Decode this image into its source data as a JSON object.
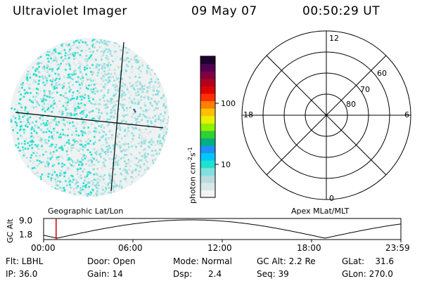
{
  "header": {
    "title": "Ultraviolet Imager",
    "date": "09 May 07",
    "time": "00:50:29 UT"
  },
  "colorbar": {
    "label": "photon cm",
    "label_exp_a": "-2",
    "label_mid": "s",
    "label_exp_b": "-1",
    "ticks": [
      "100",
      "10"
    ],
    "tick_values": [
      100,
      10
    ],
    "colors": [
      "#f0f4f4",
      "#d8e8e8",
      "#b8dcdc",
      "#7fe0e0",
      "#20e0d0",
      "#00c8ff",
      "#2090ff",
      "#00b080",
      "#30d030",
      "#90f000",
      "#e8f000",
      "#ffc000",
      "#ff8000",
      "#ff3000",
      "#e00000",
      "#b00020",
      "#800040",
      "#500050",
      "#200030"
    ],
    "scale": "log"
  },
  "polar_plot": {
    "latitude_labels": [
      "60",
      "70",
      "80"
    ],
    "mlt_labels": {
      "top": "12",
      "bottom": "0",
      "left": "18",
      "right": "6"
    }
  },
  "panel_labels": {
    "left": "Geographic Lat/Lon",
    "right": "Apex MLat/MLT"
  },
  "altitude_plot": {
    "ylabel_line1": "GC",
    "ylabel_line2": "Alt",
    "ytick_top": "9.0",
    "ytick_bottom": "1.8",
    "xticks": [
      "00:00",
      "06:00",
      "12:00",
      "18:00",
      "23:59"
    ],
    "marker_time_hours": 0.84,
    "marker_color": "#cc0000"
  },
  "info": {
    "flt": "Flt: LBHL",
    "ip": "IP: 36.0",
    "door": "Door: Open",
    "gain": "Gain: 14",
    "mode": "Mode: Normal",
    "dsp": "Dsp:      2.4",
    "gcalt": "GC Alt: 2.2 Re",
    "seq": "Seq: 39",
    "glat": "GLat:    31.6",
    "glon": "GLon: 270.0"
  },
  "image_colors": {
    "bright": "#20e0d0",
    "mid": "#7fe0e0",
    "faint": "#b8dcdc",
    "very_faint": "#d8e8e8"
  }
}
